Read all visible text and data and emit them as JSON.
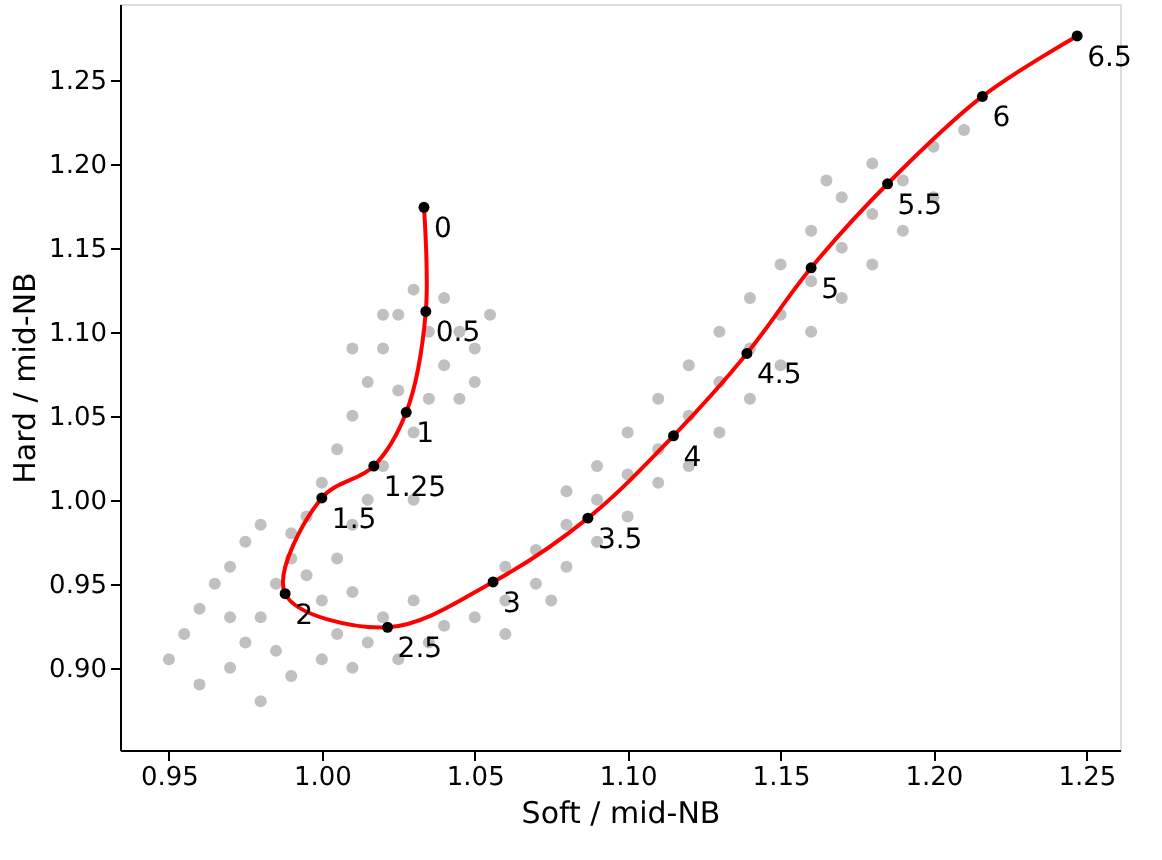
{
  "chart_data": {
    "type": "scatter",
    "xlabel": "Soft / mid-NB",
    "ylabel": "Hard / mid-NB",
    "xlim": [
      0.934,
      1.261
    ],
    "ylim": [
      0.851,
      1.295
    ],
    "xticks": [
      {
        "value": 0.95,
        "label": "0.95"
      },
      {
        "value": 1.0,
        "label": "1.00"
      },
      {
        "value": 1.05,
        "label": "1.05"
      },
      {
        "value": 1.1,
        "label": "1.10"
      },
      {
        "value": 1.15,
        "label": "1.15"
      },
      {
        "value": 1.2,
        "label": "1.20"
      },
      {
        "value": 1.25,
        "label": "1.25"
      }
    ],
    "yticks": [
      {
        "value": 0.9,
        "label": "0.90"
      },
      {
        "value": 0.95,
        "label": "0.95"
      },
      {
        "value": 1.0,
        "label": "1.00"
      },
      {
        "value": 1.05,
        "label": "1.05"
      },
      {
        "value": 1.1,
        "label": "1.10"
      },
      {
        "value": 1.15,
        "label": "1.15"
      },
      {
        "value": 1.2,
        "label": "1.20"
      },
      {
        "value": 1.25,
        "label": "1.25"
      }
    ],
    "grid": false,
    "legend": false,
    "marker": "circle",
    "series": [
      {
        "color": "#c0c0c0",
        "x": [
          0.95,
          0.955,
          0.96,
          0.965,
          0.97,
          0.975,
          0.98,
          0.96,
          0.97,
          0.975,
          0.98,
          0.985,
          0.99,
          0.99,
          0.995,
          0.98,
          0.99,
          1.0,
          1.005,
          1.0,
          0.995,
          1.01,
          1.015,
          1.02,
          1.01,
          1.025,
          1.035,
          1.04,
          1.03,
          1.005,
          0.985,
          0.97,
          1.0,
          1.005,
          1.01,
          1.015,
          1.02,
          1.025,
          1.03,
          1.04,
          1.045,
          1.05,
          1.055,
          1.04,
          1.035,
          1.03,
          1.02,
          1.015,
          1.01,
          1.025,
          1.01,
          1.045,
          1.035,
          1.02,
          1.05,
          1.03,
          1.05,
          1.06,
          1.07,
          1.08,
          1.09,
          1.1,
          1.06,
          1.07,
          1.08,
          1.09,
          1.1,
          1.11,
          1.12,
          1.13,
          1.14,
          1.15,
          1.16,
          1.17,
          1.18,
          1.19,
          1.2,
          1.21,
          1.11,
          1.12,
          1.13,
          1.14,
          1.15,
          1.16,
          1.17,
          1.18,
          1.19,
          1.2,
          1.1,
          1.11,
          1.12,
          1.13,
          1.14,
          1.15,
          1.16,
          1.17,
          1.09,
          1.08,
          1.06,
          1.075,
          1.18,
          1.165
        ],
        "values": [
          0.905,
          0.92,
          0.935,
          0.95,
          0.96,
          0.975,
          0.985,
          0.89,
          0.9,
          0.915,
          0.93,
          0.95,
          0.965,
          0.98,
          0.99,
          0.88,
          0.895,
          0.905,
          0.92,
          0.94,
          0.955,
          0.9,
          0.915,
          0.93,
          0.945,
          0.905,
          0.915,
          0.925,
          0.94,
          0.965,
          0.91,
          0.93,
          1.01,
          1.03,
          1.05,
          1.07,
          1.09,
          1.11,
          1.125,
          1.12,
          1.1,
          1.09,
          1.11,
          1.08,
          1.06,
          1.04,
          1.02,
          1.0,
          0.985,
          1.065,
          1.09,
          1.06,
          1.1,
          1.11,
          1.07,
          1.0,
          0.93,
          0.94,
          0.95,
          0.96,
          0.975,
          0.99,
          0.96,
          0.97,
          0.985,
          1.0,
          1.015,
          1.03,
          1.05,
          1.07,
          1.09,
          1.11,
          1.13,
          1.15,
          1.17,
          1.19,
          1.21,
          1.22,
          1.01,
          1.02,
          1.04,
          1.06,
          1.08,
          1.1,
          1.12,
          1.14,
          1.16,
          1.18,
          1.04,
          1.06,
          1.08,
          1.1,
          1.12,
          1.14,
          1.16,
          1.18,
          1.02,
          1.005,
          0.92,
          0.94,
          1.2,
          1.19
        ]
      },
      {
        "type": "line",
        "color": "#ff0000",
        "marker": "none",
        "line_style": "solid",
        "x": [
          1.0334,
          1.034,
          1.0276,
          1.017,
          1.0,
          0.988,
          1.0215,
          1.056,
          1.087,
          1.115,
          1.139,
          1.16,
          1.185,
          1.216,
          1.247
        ],
        "values": [
          1.174,
          1.112,
          1.052,
          1.02,
          1.001,
          0.944,
          0.924,
          0.951,
          0.989,
          1.038,
          1.087,
          1.138,
          1.188,
          1.24,
          1.276
        ]
      },
      {
        "type": "scatter",
        "color": "#000000",
        "x": [
          1.0334,
          1.034,
          1.0276,
          1.017,
          1.0,
          0.988,
          1.0215,
          1.056,
          1.087,
          1.115,
          1.139,
          1.16,
          1.185,
          1.216,
          1.247
        ],
        "values": [
          1.174,
          1.112,
          1.052,
          1.02,
          1.001,
          0.944,
          0.924,
          0.951,
          0.989,
          1.038,
          1.087,
          1.138,
          1.188,
          1.24,
          1.276
        ]
      }
    ],
    "annotations": [
      {
        "text": "0",
        "x": 1.0334,
        "y": 1.174
      },
      {
        "text": "0.5",
        "x": 1.034,
        "y": 1.112
      },
      {
        "text": "1",
        "x": 1.0276,
        "y": 1.052
      },
      {
        "text": "1.25",
        "x": 1.017,
        "y": 1.02
      },
      {
        "text": "1.5",
        "x": 1.0,
        "y": 1.001
      },
      {
        "text": "2",
        "x": 0.988,
        "y": 0.944
      },
      {
        "text": "2.5",
        "x": 1.0215,
        "y": 0.924
      },
      {
        "text": "3",
        "x": 1.056,
        "y": 0.951
      },
      {
        "text": "3.5",
        "x": 1.087,
        "y": 0.989
      },
      {
        "text": "4",
        "x": 1.115,
        "y": 1.038
      },
      {
        "text": "4.5",
        "x": 1.139,
        "y": 1.087
      },
      {
        "text": "5",
        "x": 1.16,
        "y": 1.138
      },
      {
        "text": "5.5",
        "x": 1.185,
        "y": 1.188
      },
      {
        "text": "6",
        "x": 1.216,
        "y": 1.24
      },
      {
        "text": "6.5",
        "x": 1.247,
        "y": 1.276
      }
    ]
  }
}
